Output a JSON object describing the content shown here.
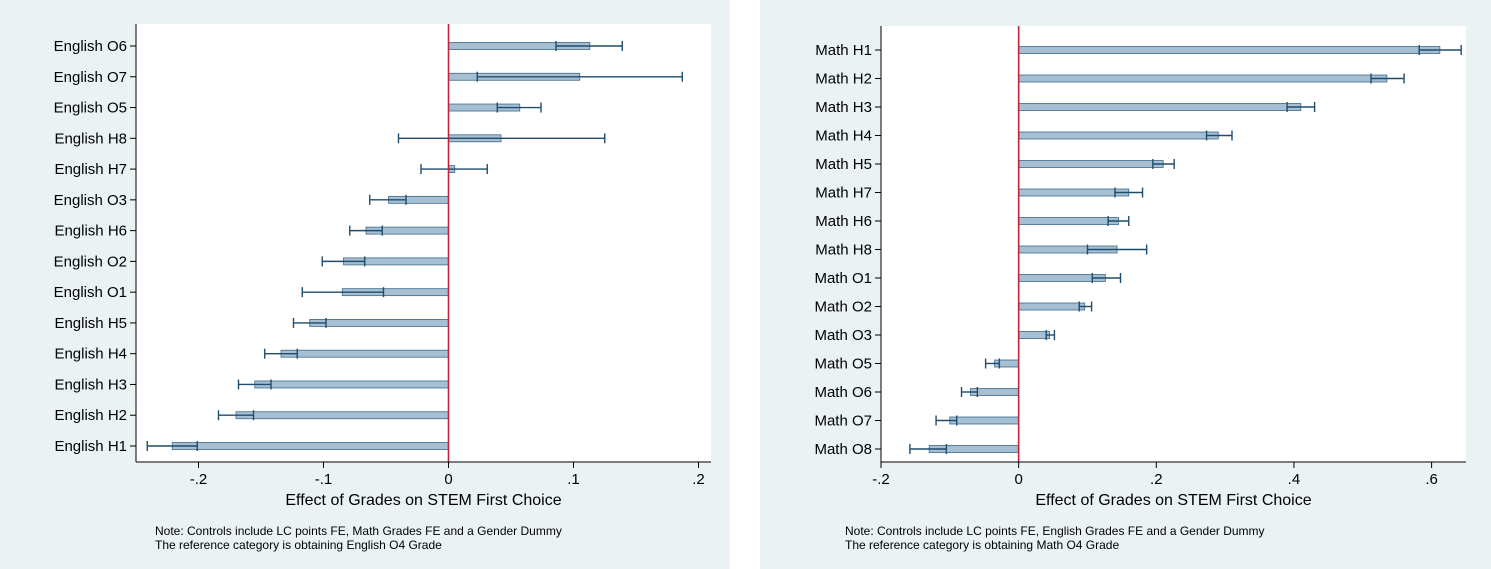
{
  "chart_data": [
    {
      "type": "bar",
      "orientation": "horizontal",
      "xlabel": "Effect of Grades on STEM First Choice",
      "xticks": [
        "-.2",
        "-.1",
        "0",
        ".1",
        ".2"
      ],
      "xtick_values": [
        -0.2,
        -0.1,
        0,
        0.1,
        0.2
      ],
      "xlim": [
        -0.25,
        0.21
      ],
      "reference_line": 0,
      "colors": {
        "bar": "#a7bfd3",
        "bar_edge": "#3d6a8a",
        "error": "#1f4d6e",
        "refline": "#c0243c"
      },
      "categories": [
        "English O6",
        "English O7",
        "English O5",
        "English H8",
        "English H7",
        "English O3",
        "English H6",
        "English O2",
        "English O1",
        "English H5",
        "English H4",
        "English H3",
        "English H2",
        "English H1"
      ],
      "values": [
        0.113,
        0.105,
        0.057,
        0.042,
        0.005,
        -0.048,
        -0.066,
        -0.084,
        -0.085,
        -0.111,
        -0.134,
        -0.155,
        -0.17,
        -0.221
      ],
      "ci_low": [
        0.086,
        0.023,
        0.039,
        -0.04,
        -0.022,
        -0.063,
        -0.079,
        -0.101,
        -0.117,
        -0.124,
        -0.147,
        -0.168,
        -0.184,
        -0.241
      ],
      "ci_high": [
        0.139,
        0.187,
        0.074,
        0.125,
        0.031,
        -0.034,
        -0.053,
        -0.067,
        -0.052,
        -0.098,
        -0.121,
        -0.142,
        -0.156,
        -0.201
      ],
      "note_lines": [
        "Note: Controls include LC points FE, Math Grades FE and a Gender Dummy",
        "The reference category is obtaining English O4 Grade"
      ]
    },
    {
      "type": "bar",
      "orientation": "horizontal",
      "xlabel": "Effect of Grades on STEM First Choice",
      "xticks": [
        "-.2",
        "0",
        ".2",
        ".4",
        ".6"
      ],
      "xtick_values": [
        -0.2,
        0,
        0.2,
        0.4,
        0.6
      ],
      "xlim": [
        -0.2,
        0.65
      ],
      "reference_line": 0,
      "colors": {
        "bar": "#a7bfd3",
        "bar_edge": "#3d6a8a",
        "error": "#1f4d6e",
        "refline": "#c0243c"
      },
      "categories": [
        "Math H1",
        "Math H2",
        "Math H3",
        "Math H4",
        "Math H5",
        "Math H7",
        "Math H6",
        "Math H8",
        "Math O1",
        "Math O2",
        "Math O3",
        "Math O5",
        "Math O6",
        "Math O7",
        "Math O8"
      ],
      "values": [
        0.612,
        0.535,
        0.41,
        0.29,
        0.21,
        0.16,
        0.145,
        0.143,
        0.126,
        0.096,
        0.045,
        -0.035,
        -0.07,
        -0.1,
        -0.13
      ],
      "ci_low": [
        0.582,
        0.512,
        0.39,
        0.273,
        0.195,
        0.14,
        0.13,
        0.1,
        0.107,
        0.088,
        0.04,
        -0.048,
        -0.083,
        -0.12,
        -0.158
      ],
      "ci_high": [
        0.643,
        0.56,
        0.43,
        0.31,
        0.226,
        0.18,
        0.16,
        0.186,
        0.148,
        0.106,
        0.052,
        -0.028,
        -0.06,
        -0.09,
        -0.105
      ],
      "note_lines": [
        "Note: Controls include LC points FE, English Grades FE and a Gender Dummy",
        "The reference category is obtaining Math O4 Grade"
      ]
    }
  ]
}
